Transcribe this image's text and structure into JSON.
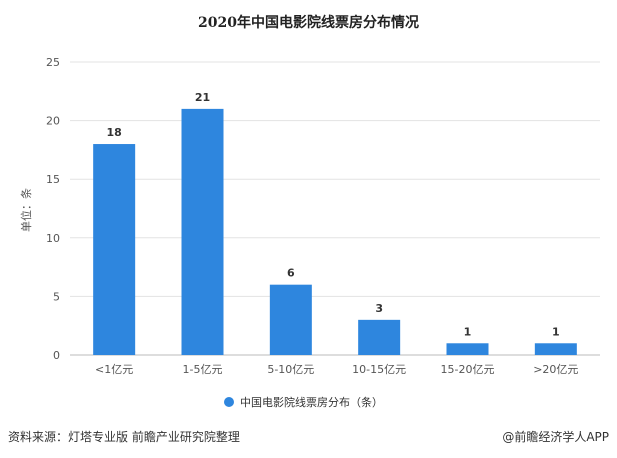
{
  "chart_data": {
    "type": "bar",
    "title": "2020年中国电影院线票房分布情况",
    "categories": [
      "<1亿元",
      "1-5亿元",
      "5-10亿元",
      "10-15亿元",
      "15-20亿元",
      ">20亿元"
    ],
    "series": [
      {
        "name": "中国电影院线票房分布（条）",
        "values": [
          18,
          21,
          6,
          3,
          1,
          1
        ],
        "color": "#2e86de"
      }
    ],
    "ylabel": "单位：条",
    "xlabel": "",
    "ylim": [
      0,
      25
    ],
    "yticks": [
      0,
      5,
      10,
      15,
      20,
      25
    ],
    "grid": true,
    "legend": "bottom",
    "data_labels": true
  },
  "footer": {
    "source": "资料来源：灯塔专业版 前瞻产业研究院整理",
    "brand": "@前瞻经济学人APP"
  }
}
